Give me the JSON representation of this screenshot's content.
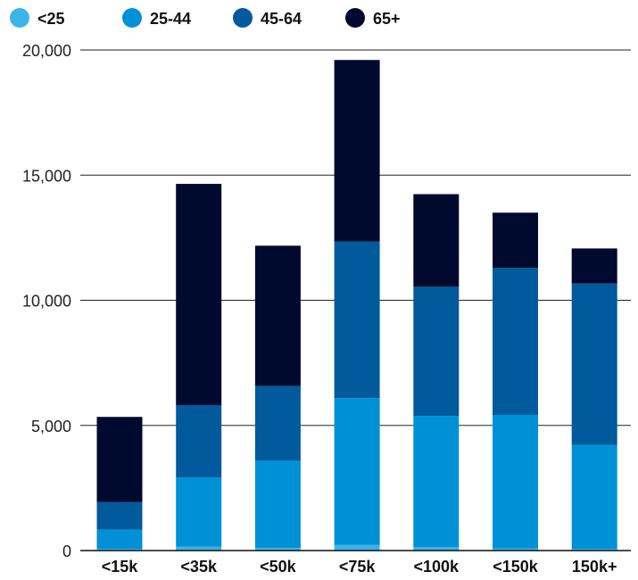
{
  "chart_data": {
    "type": "bar",
    "stacked": true,
    "title": "",
    "xlabel": "",
    "ylabel": "",
    "categories": [
      "<15k",
      "<35k",
      "<50k",
      "<75k",
      "<100k",
      "<150k",
      "150k+"
    ],
    "series": [
      {
        "name": "<25",
        "color": "#3cb4e8",
        "values": [
          60,
          150,
          100,
          230,
          140,
          80,
          60
        ]
      },
      {
        "name": "25-44",
        "color": "#0090d6",
        "values": [
          780,
          2770,
          3500,
          5860,
          5240,
          5340,
          4160
        ]
      },
      {
        "name": "45-64",
        "color": "#005a9c",
        "values": [
          1100,
          2890,
          2980,
          6260,
          5160,
          5880,
          6450
        ]
      },
      {
        "name": "65+",
        "color": "#000a2e",
        "values": [
          3400,
          8840,
          5600,
          7250,
          3700,
          2200,
          1400
        ]
      }
    ],
    "ylim": [
      0,
      20000
    ],
    "yticks": [
      0,
      5000,
      10000,
      15000,
      20000
    ],
    "ytick_labels": [
      "0",
      "5,000",
      "10,000",
      "15,000",
      "20,000"
    ],
    "grid": true,
    "legend_position": "top-left"
  }
}
